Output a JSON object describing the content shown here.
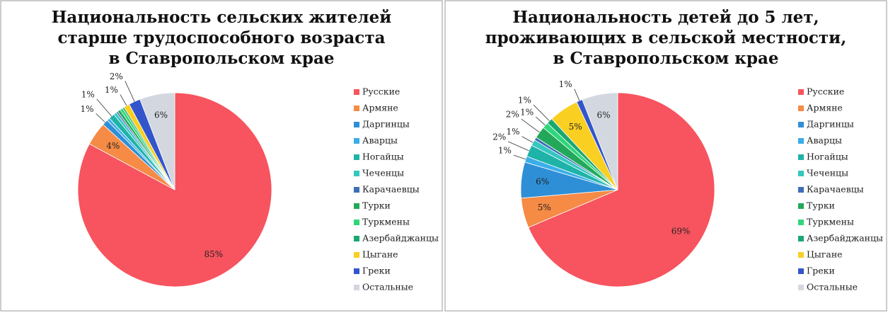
{
  "chart_data": [
    {
      "type": "pie",
      "title": [
        "Национальность сельских жителей",
        "старше трудоспособного возраста",
        "в Ставропольском крае"
      ],
      "categories": [
        "Русские",
        "Армяне",
        "Даргинцы",
        "Аварцы",
        "Ногайцы",
        "Чеченцы",
        "Карачаевцы",
        "Турки",
        "Туркмены",
        "Азербайджанцы",
        "Цыгане",
        "Греки",
        "Остальные"
      ],
      "values": [
        85,
        4,
        1,
        0.5,
        1,
        0.5,
        0.3,
        0.5,
        0.5,
        0.3,
        1,
        2,
        6
      ],
      "value_labels": [
        "85%",
        "4%",
        "1%",
        null,
        "1%",
        null,
        null,
        null,
        null,
        null,
        "1%",
        "2%",
        "6%"
      ],
      "colors": [
        "#f7545f",
        "#f58b45",
        "#2f8fd6",
        "#3aaee8",
        "#1fb3a8",
        "#35c7c0",
        "#3d6fb5",
        "#22a85a",
        "#2fd67a",
        "#1aa871",
        "#f9cf22",
        "#3355cc",
        "#d3d8e0"
      ]
    },
    {
      "type": "pie",
      "title": [
        "Национальность детей до 5 лет,",
        "проживающих в сельской местности,",
        "в Ставропольском крае"
      ],
      "categories": [
        "Русские",
        "Армяне",
        "Даргинцы",
        "Аварцы",
        "Ногайцы",
        "Чеченцы",
        "Карачаевцы",
        "Турки",
        "Туркмены",
        "Азербайджанцы",
        "Цыгане",
        "Греки",
        "Остальные"
      ],
      "values": [
        69,
        5,
        6,
        1,
        2,
        1,
        0.5,
        2,
        1,
        1,
        5,
        1,
        6
      ],
      "value_labels": [
        "69%",
        "5%",
        "6%",
        "1%",
        "2%",
        "1%",
        null,
        "2%",
        "1%",
        "1%",
        "5%",
        "1%",
        "6%"
      ],
      "colors": [
        "#f7545f",
        "#f58b45",
        "#2f8fd6",
        "#3aaee8",
        "#1fb3a8",
        "#35c7c0",
        "#3d6fb5",
        "#22a85a",
        "#2fd67a",
        "#1aa871",
        "#f9cf22",
        "#3355cc",
        "#d3d8e0"
      ]
    }
  ]
}
